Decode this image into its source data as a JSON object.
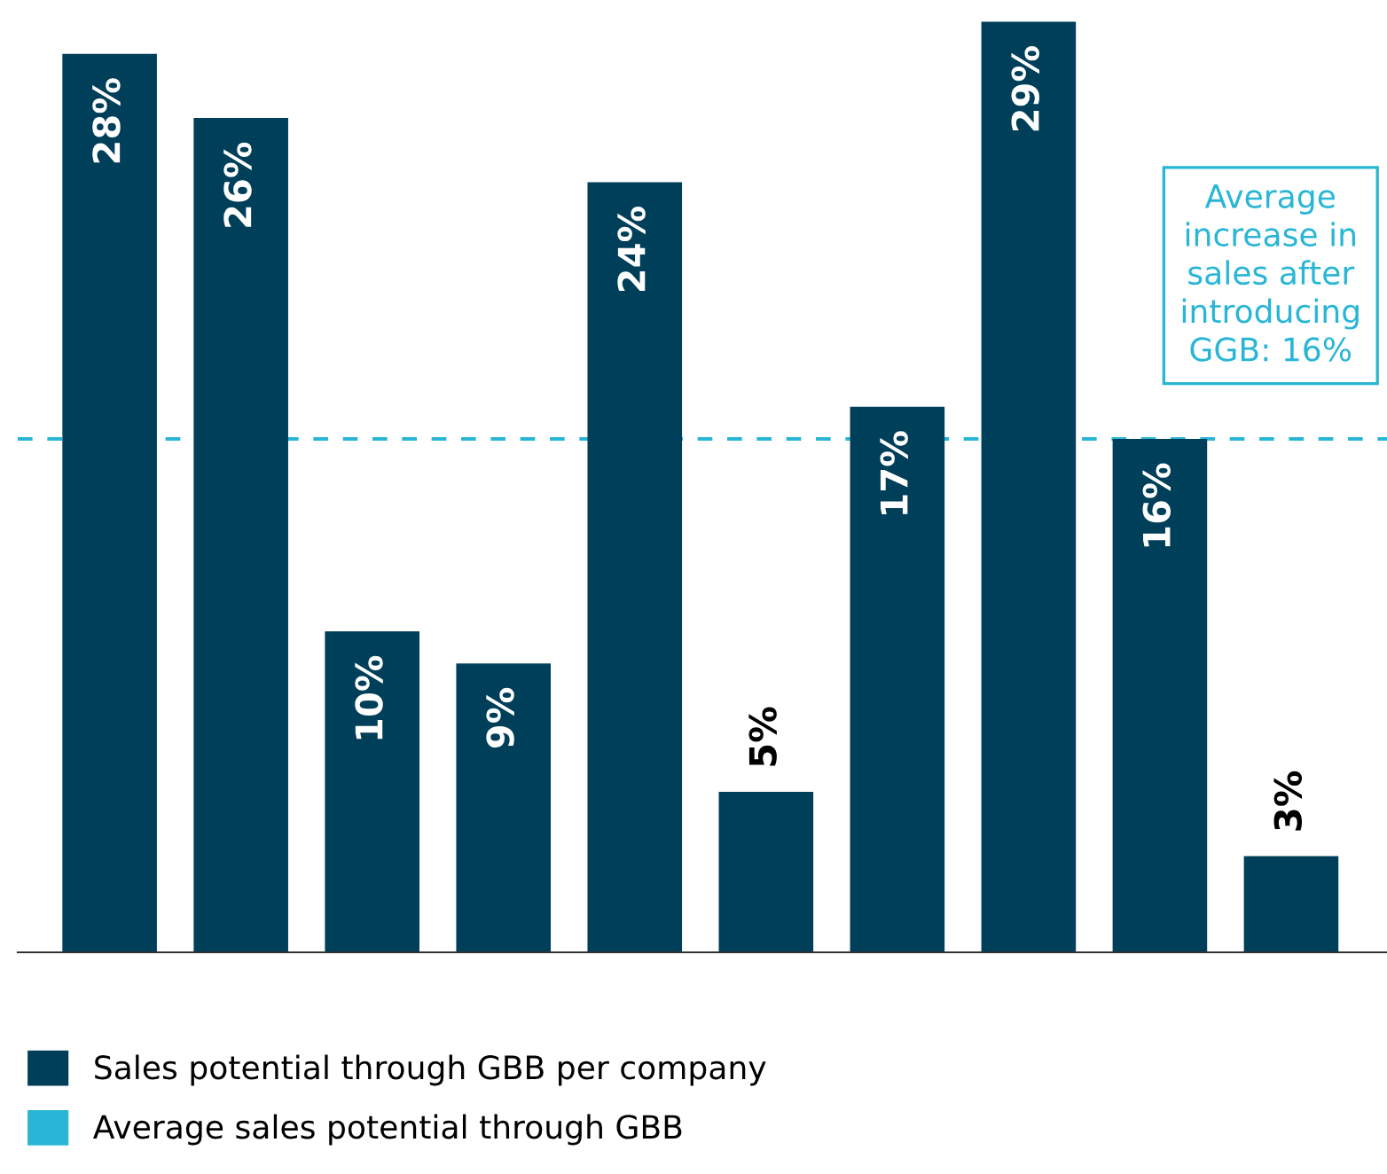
{
  "chart_data": {
    "type": "bar",
    "categories": [
      null,
      null,
      null,
      null,
      null,
      null,
      null,
      null,
      null,
      null
    ],
    "series": [
      {
        "name": "Sales potential through GBB per company",
        "color": "#003f5a",
        "values": [
          28,
          26,
          10,
          9,
          24,
          5,
          17,
          29,
          16,
          3
        ],
        "value_labels": [
          "28%",
          "26%",
          "10%",
          "9%",
          "24%",
          "5%",
          "17%",
          "29%",
          "16%",
          "3%"
        ]
      }
    ],
    "ref_lines": [
      {
        "axis": "y",
        "value": 16,
        "label": "Average sales potential through GBB",
        "color": "#29b6d6",
        "line_style": "dashed"
      }
    ],
    "annotations": [
      "Average\nincrease in\nsales after\nintroducing\nGGB: 16%"
    ],
    "legend": "bottom",
    "grid": false
  }
}
